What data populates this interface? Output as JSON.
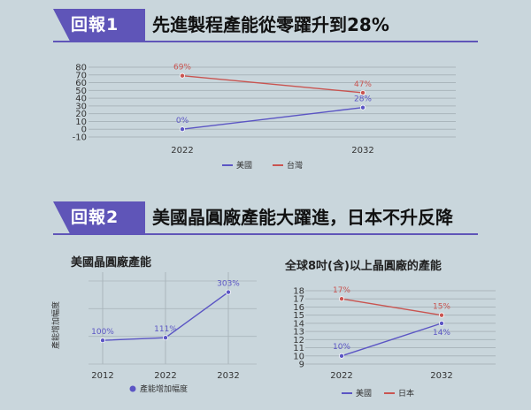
{
  "section1": {
    "tag": "回報1",
    "headline": "先進製程產能從零躍升到28%"
  },
  "section2": {
    "tag": "回報2",
    "headline": "美國晶圓廠產能大躍進，日本不升反降"
  },
  "colors": {
    "us": "#5b55c4",
    "taiwan": "#c95450",
    "japan": "#c95450",
    "grid": "#aab6bc",
    "accent": "#5f55b8"
  },
  "chart_data": [
    {
      "type": "line",
      "title": "",
      "x": [
        "2022",
        "2032"
      ],
      "ylim": [
        -10,
        80
      ],
      "yticks": [
        80,
        70,
        60,
        50,
        40,
        30,
        20,
        10,
        0,
        -10
      ],
      "series": [
        {
          "name": "美國",
          "values": [
            0,
            28
          ],
          "labels": [
            "0%",
            "28%"
          ],
          "color": "#5b55c4"
        },
        {
          "name": "台灣",
          "values": [
            69,
            47
          ],
          "labels": [
            "69%",
            "47%"
          ],
          "color": "#c95450"
        }
      ],
      "legend": "bottom",
      "grid": true
    },
    {
      "type": "line",
      "title": "美國晶圓廠產能",
      "ylabel": "產能增加幅度",
      "x": [
        "2012",
        "2022",
        "2032"
      ],
      "ylim": [
        0,
        350
      ],
      "series": [
        {
          "name": "產能增加幅度",
          "values": [
            100,
            111,
            303
          ],
          "labels": [
            "100%",
            "111%",
            "303%"
          ],
          "color": "#5b55c4"
        }
      ],
      "legend": "bottom",
      "grid": true
    },
    {
      "type": "line",
      "title": "全球8吋(含)以上晶圓廠的產能",
      "x": [
        "2022",
        "2032"
      ],
      "ylim": [
        9,
        18
      ],
      "yticks": [
        18,
        17,
        16,
        15,
        14,
        13,
        12,
        11,
        10,
        9
      ],
      "series": [
        {
          "name": "美國",
          "values": [
            10,
            14
          ],
          "labels": [
            "10%",
            "14%"
          ],
          "color": "#5b55c4"
        },
        {
          "name": "日本",
          "values": [
            17,
            15
          ],
          "labels": [
            "17%",
            "15%"
          ],
          "color": "#c95450"
        }
      ],
      "legend": "bottom",
      "grid": true
    }
  ]
}
